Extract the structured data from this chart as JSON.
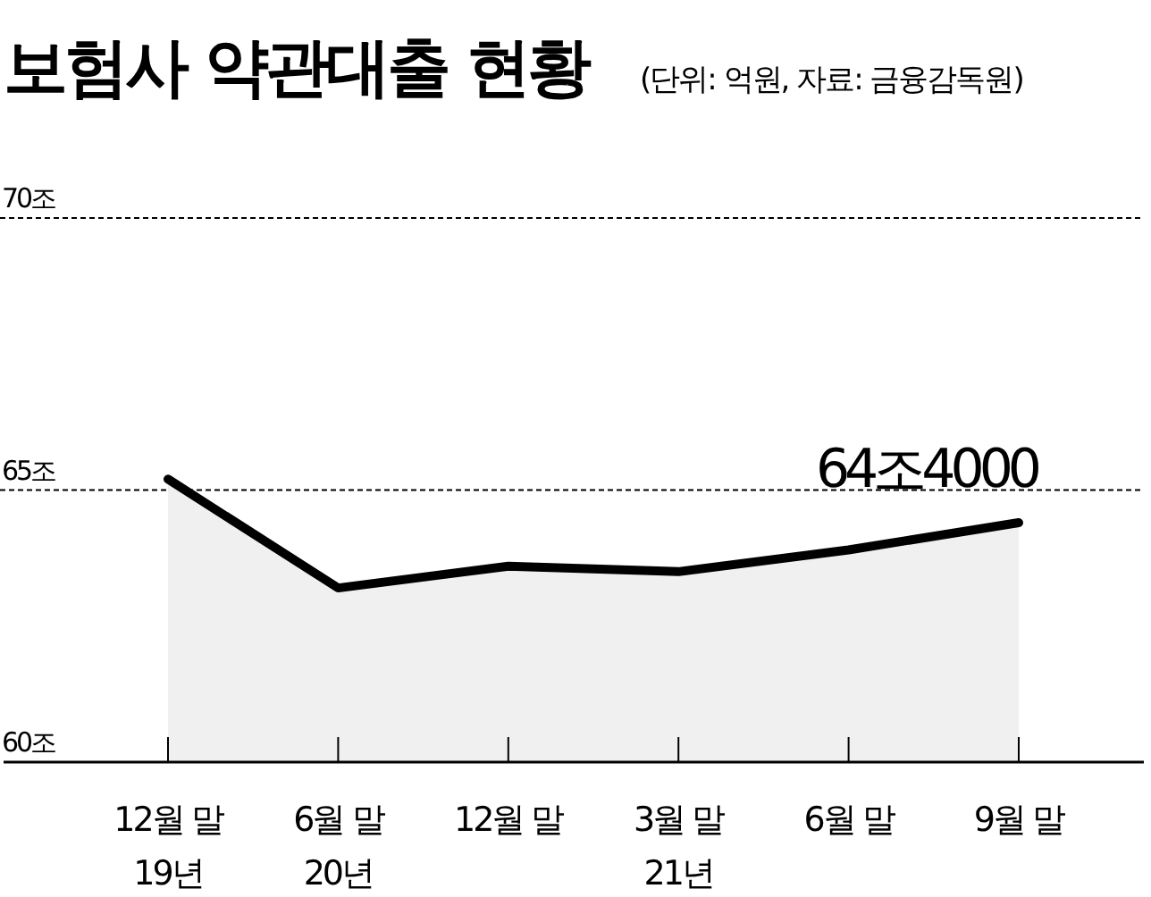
{
  "chart_data": {
    "type": "area",
    "title": "보험사 약관대출 현황",
    "subtitle": "(단위: 억원, 자료: 금융감독원)",
    "categories": [
      "12월 말\n19년",
      "6월 말\n20년",
      "12월 말",
      "3월 말\n21년",
      "6월 말",
      "9월 말"
    ],
    "values": [
      65.2,
      63.2,
      63.6,
      63.5,
      63.9,
      64.4
    ],
    "value_labels": [
      null,
      null,
      null,
      null,
      null,
      "64조4000"
    ],
    "color": "#000000",
    "ylim": [
      60,
      70
    ],
    "yticks": [
      {
        "value": 60,
        "label": "60조"
      },
      {
        "value": 65,
        "label": "65조"
      },
      {
        "value": 70,
        "label": "70조"
      }
    ],
    "grid": "y"
  }
}
